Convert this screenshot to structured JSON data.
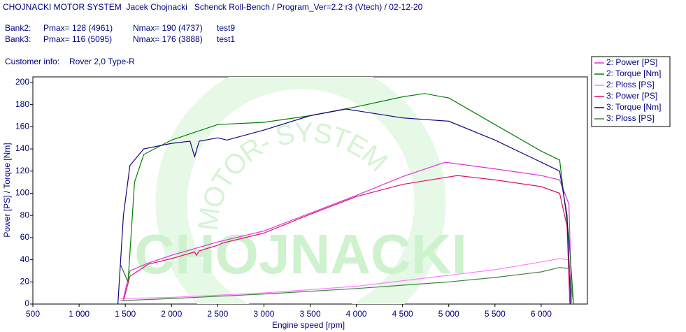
{
  "header": {
    "line1": "CHOJNACKI MOTOR SYSTEM  Jacek Chojnacki   Schenck Roll-Bench / Program_Ver=2.2 r3 (Vtech) / 02-12-20",
    "banks": [
      [
        "Bank2:",
        "Pmax= 128 (4961)",
        "Nmax= 190 (4737)",
        "test9"
      ],
      [
        "Bank3:",
        "Pmax= 116 (5095)",
        "Nmax= 176 (3888)",
        "test1"
      ]
    ],
    "customer_label": "Customer info:",
    "customer": "Rover 2,0 Type-R"
  },
  "chart_data": {
    "type": "line",
    "xlabel": "Engine speed [rpm]",
    "ylabel": "Power [PS] / Torque [Nm]",
    "watermark": [
      "CHOJNACKI",
      "MOTOR- SYSTEM"
    ],
    "xlim": [
      500,
      6500
    ],
    "ylim": [
      0,
      205
    ],
    "xticks": [
      500,
      {
        "value": 1000,
        "label": "1 000"
      },
      {
        "value": 1500,
        "label": "1 500"
      },
      {
        "value": 2000,
        "label": "2 000"
      },
      {
        "value": 2500,
        "label": "2 500"
      },
      {
        "value": 3000,
        "label": "3 000"
      },
      {
        "value": 3500,
        "label": "3 500"
      },
      {
        "value": 4000,
        "label": "4 000"
      },
      {
        "value": 4500,
        "label": "4 500"
      },
      {
        "value": 5000,
        "label": "5 000"
      },
      {
        "value": 5500,
        "label": "5 500"
      },
      {
        "value": 6000,
        "label": "6 000"
      }
    ],
    "yticks": [
      0,
      20,
      40,
      60,
      80,
      100,
      120,
      140,
      160,
      180,
      200
    ],
    "grid": false,
    "series": [
      {
        "name": "2: Power [PS]",
        "color": "#e030e0",
        "x": [
          1480,
          1550,
          1750,
          2000,
          2250,
          2500,
          3000,
          3500,
          4000,
          4500,
          4961,
          5500,
          6000,
          6200,
          6300,
          6330
        ],
        "values": [
          5,
          30,
          37,
          44,
          50,
          56,
          66,
          82,
          98,
          115,
          128,
          122,
          116,
          112,
          90,
          0
        ]
      },
      {
        "name": "2: Torque [Nm]",
        "color": "#008000",
        "x": [
          1450,
          1530,
          1600,
          1700,
          2000,
          2500,
          3000,
          3500,
          4000,
          4500,
          4737,
          5000,
          5500,
          6000,
          6200,
          6300,
          6350
        ],
        "values": [
          35,
          20,
          110,
          135,
          148,
          162,
          164,
          170,
          178,
          187,
          190,
          186,
          162,
          138,
          130,
          60,
          0
        ]
      },
      {
        "name": "2: Ploss [PS]",
        "color": "#ff80ff",
        "x": [
          1450,
          2000,
          3000,
          4000,
          5000,
          5500,
          6000,
          6200,
          6300,
          6330
        ],
        "values": [
          5,
          6,
          10,
          16,
          26,
          31,
          38,
          41,
          40,
          0
        ]
      },
      {
        "name": "3: Power [PS]",
        "color": "#e0106a",
        "x": [
          1480,
          1550,
          1750,
          2000,
          2250,
          2270,
          2300,
          2500,
          2550,
          3000,
          3500,
          4000,
          4500,
          5095,
          5500,
          6000,
          6200,
          6280,
          6310
        ],
        "values": [
          3,
          25,
          36,
          41,
          47,
          44,
          48,
          53,
          55,
          64,
          81,
          97,
          108,
          116,
          112,
          106,
          100,
          70,
          0
        ]
      },
      {
        "name": "3: Torque [Nm]",
        "color": "#200080",
        "x": [
          1420,
          1480,
          1550,
          1700,
          2000,
          2200,
          2250,
          2300,
          2500,
          2600,
          3000,
          3500,
          3888,
          4500,
          5000,
          5500,
          6000,
          6200,
          6280,
          6320
        ],
        "values": [
          0,
          80,
          125,
          140,
          145,
          147,
          133,
          147,
          150,
          148,
          157,
          170,
          176,
          168,
          165,
          148,
          128,
          120,
          80,
          0
        ]
      },
      {
        "name": "3: Ploss [PS]",
        "color": "#408040",
        "x": [
          1450,
          2000,
          3000,
          4000,
          5000,
          5500,
          6000,
          6200,
          6300,
          6350
        ],
        "values": [
          3,
          5,
          9,
          14,
          20,
          24,
          29,
          33,
          32,
          0
        ]
      }
    ]
  }
}
